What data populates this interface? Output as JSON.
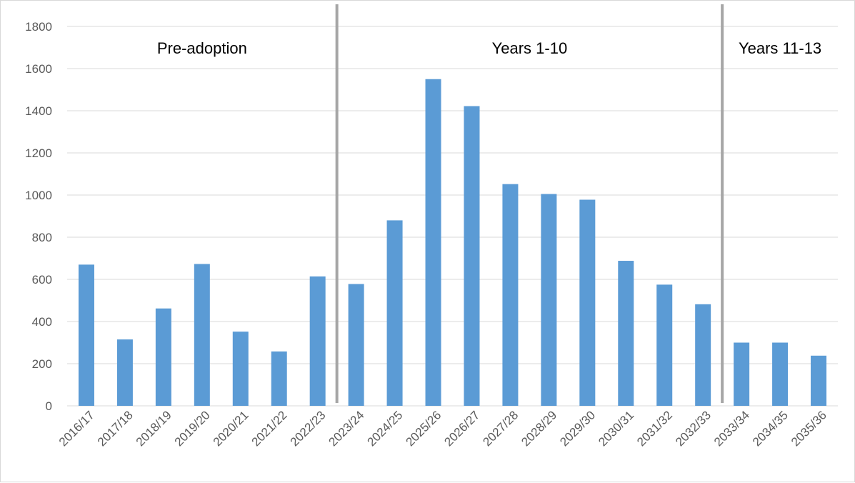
{
  "chart_data": {
    "type": "bar",
    "title": "",
    "xlabel": "",
    "ylabel": "",
    "ylim": [
      0,
      1800
    ],
    "y_ticks": [
      0,
      200,
      400,
      600,
      800,
      1000,
      1200,
      1400,
      1600,
      1800
    ],
    "grid": true,
    "legend": "none",
    "bar_color": "#5b9bd5",
    "grid_color": "#d9d9d9",
    "divider_color": "#a6a6a6",
    "categories": [
      "2016/17",
      "2017/18",
      "2018/19",
      "2019/20",
      "2020/21",
      "2021/22",
      "2022/23",
      "2023/24",
      "2024/25",
      "2025/26",
      "2026/27",
      "2027/28",
      "2028/29",
      "2029/30",
      "2030/31",
      "2031/32",
      "2032/33",
      "2033/34",
      "2034/35",
      "2035/36"
    ],
    "values": [
      670,
      315,
      462,
      673,
      352,
      258,
      614,
      578,
      880,
      1550,
      1422,
      1052,
      1005,
      978,
      688,
      575,
      482,
      300,
      300,
      238
    ],
    "periods": [
      {
        "label": "Pre-adoption",
        "start_index": 0,
        "end_index": 6
      },
      {
        "label": "Years 1-10",
        "start_index": 7,
        "end_index": 16
      },
      {
        "label": "Years 11-13",
        "start_index": 17,
        "end_index": 19
      }
    ]
  }
}
